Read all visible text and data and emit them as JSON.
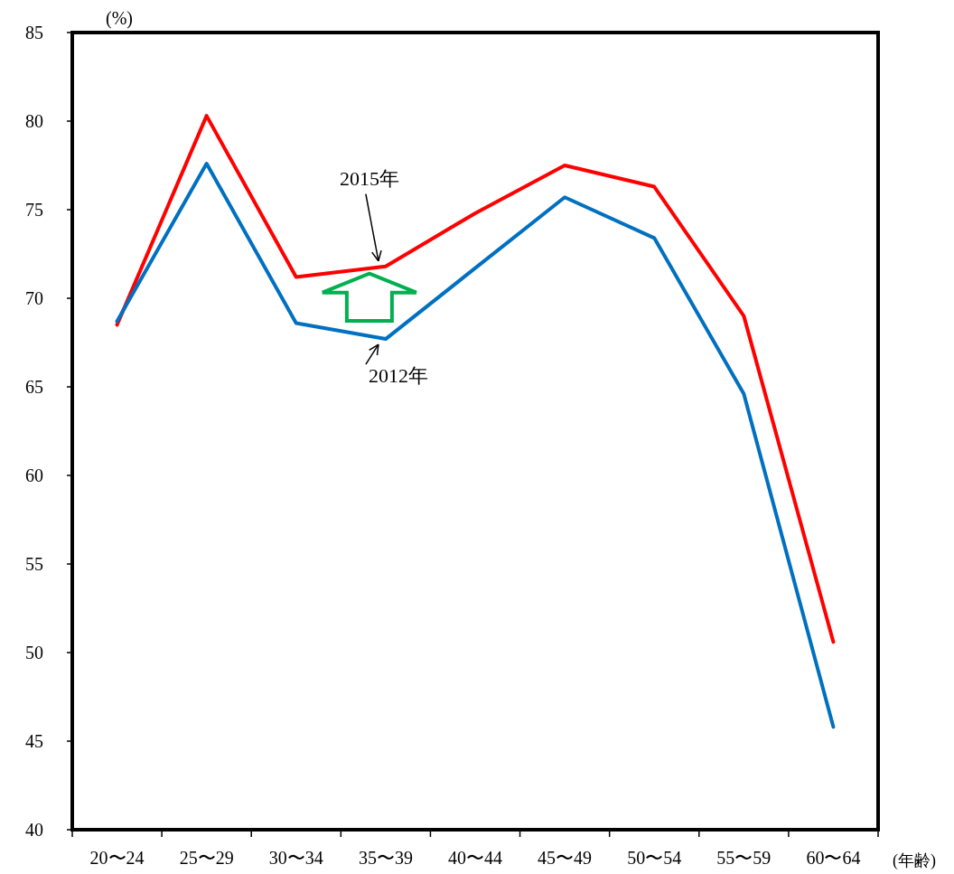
{
  "chart_data": {
    "type": "line",
    "ylabel": "(%)",
    "xlabel": "(年齢)",
    "categories": [
      "20〜24",
      "25〜29",
      "30〜34",
      "35〜39",
      "40〜44",
      "45〜49",
      "50〜54",
      "55〜59",
      "60〜64"
    ],
    "series": [
      {
        "name": "2015年",
        "color": "#ff0000",
        "values": [
          68.5,
          80.3,
          71.2,
          71.8,
          74.8,
          77.5,
          76.3,
          69.0,
          50.6
        ]
      },
      {
        "name": "2012年",
        "color": "#0070c0",
        "values": [
          68.7,
          77.6,
          68.6,
          67.7,
          71.7,
          75.7,
          73.4,
          64.6,
          45.8
        ]
      }
    ],
    "ylim": [
      40,
      85
    ],
    "yticks": [
      40,
      45,
      50,
      55,
      60,
      65,
      70,
      75,
      80,
      85
    ],
    "grid": false,
    "legend": false,
    "marker": "none",
    "line_style": "solid"
  }
}
